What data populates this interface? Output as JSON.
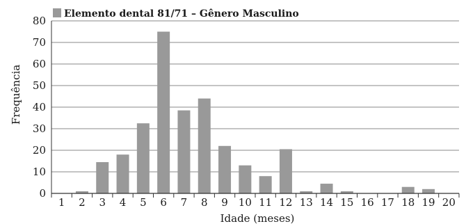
{
  "chart_data": {
    "type": "bar",
    "legend": {
      "label": "Elemento dental 81/71 – Gênero Masculino",
      "position": "top-left"
    },
    "xlabel": "Idade (meses)",
    "ylabel": "Frequência",
    "ylim": [
      0,
      80
    ],
    "yticks": [
      0,
      10,
      20,
      30,
      40,
      50,
      60,
      70,
      80
    ],
    "grid": true,
    "categories": [
      "1",
      "2",
      "3",
      "4",
      "5",
      "6",
      "7",
      "8",
      "9",
      "10",
      "11",
      "12",
      "13",
      "14",
      "15",
      "16",
      "17",
      "18",
      "19",
      "20"
    ],
    "series": [
      {
        "name": "Elemento dental 81/71 – Gênero Masculino",
        "values": [
          0,
          1,
          14.5,
          18,
          32.5,
          75,
          38.5,
          44,
          22,
          13,
          8,
          20.5,
          1,
          4.5,
          1,
          0,
          0,
          3,
          2,
          0
        ]
      }
    ],
    "colors": {
      "bar": "#999999",
      "grid": "#8a8a8a",
      "axis": "#333333"
    }
  }
}
